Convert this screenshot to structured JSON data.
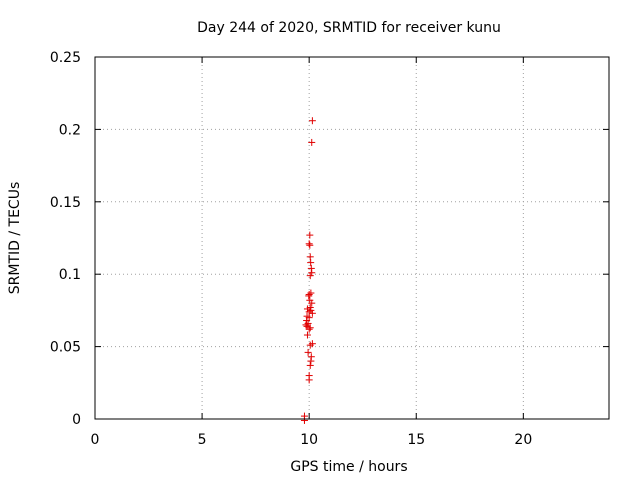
{
  "chart_data": {
    "type": "scatter",
    "title": "Day 244 of 2020, SRMTID for receiver kunu",
    "xlabel": "GPS time / hours",
    "ylabel": "SRMTID / TECUs",
    "xlim": [
      0,
      24
    ],
    "ylim": [
      0,
      0.25
    ],
    "xticks": [
      0,
      5,
      10,
      15,
      20
    ],
    "yticks": [
      0,
      0.05,
      0.1,
      0.15,
      0.2,
      0.25
    ],
    "xtick_labels": [
      "0",
      "5",
      "10",
      "15",
      "20"
    ],
    "ytick_labels": [
      "0",
      "0.05",
      "0.1",
      "0.15",
      "0.2",
      "0.25"
    ],
    "grid": true,
    "marker": "+",
    "color": "#e00000",
    "series": [
      {
        "x": [
          10.15,
          10.12,
          10.03,
          10.0,
          10.03,
          10.05,
          10.07,
          10.1,
          10.12,
          10.05,
          10.08,
          10.0,
          9.98,
          10.03,
          10.12,
          10.05,
          9.92,
          10.08,
          10.0,
          10.15,
          9.9,
          10.0,
          9.88,
          9.95,
          9.85,
          9.9,
          10.05,
          10.0,
          9.92,
          10.15,
          10.05,
          9.95,
          10.1,
          10.08,
          10.05,
          10.0,
          10.0,
          9.78,
          9.78,
          9.78
        ],
        "y": [
          0.206,
          0.191,
          0.127,
          0.121,
          0.12,
          0.112,
          0.108,
          0.104,
          0.101,
          0.099,
          0.087,
          0.086,
          0.085,
          0.082,
          0.08,
          0.077,
          0.076,
          0.075,
          0.074,
          0.073,
          0.071,
          0.07,
          0.068,
          0.066,
          0.065,
          0.064,
          0.063,
          0.062,
          0.058,
          0.052,
          0.051,
          0.046,
          0.043,
          0.04,
          0.037,
          0.03,
          0.027,
          0.002,
          0.0,
          -0.001
        ]
      }
    ]
  }
}
